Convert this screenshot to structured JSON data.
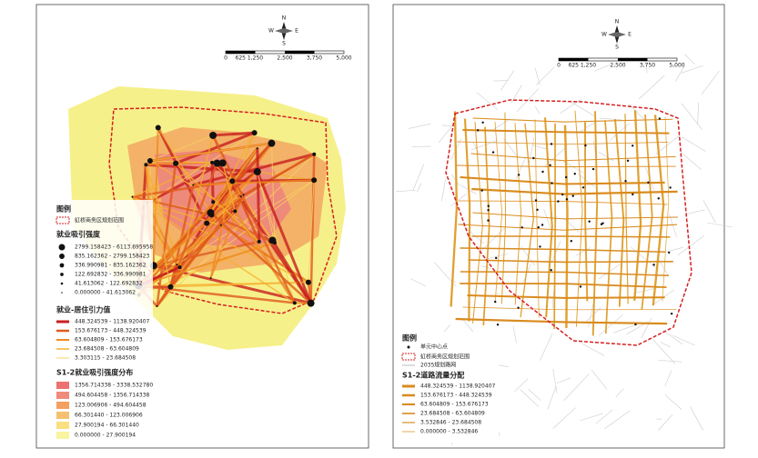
{
  "left_map": {
    "compass": [
      "N",
      "S",
      "W",
      "E"
    ],
    "scale_labels": [
      "0",
      "625",
      "1,250",
      "2,500",
      "3,750",
      "5,000"
    ],
    "legend": {
      "title": "图例",
      "boundary": "虹桥商务区规划范围",
      "attraction_title": "就业吸引强度",
      "attraction_classes": [
        "2799.158423 - 6113.695958",
        "835.162362 - 2799.158423",
        "336.990981 - 835.162362",
        "122.692832 - 336.990981",
        "41.613062 - 122.692832",
        "0.000000 - 41.613062"
      ],
      "gravity_title": "就业-居住引力值",
      "gravity_classes": [
        "448.324539 - 1138.920407",
        "153.676173 - 448.324539",
        "63.604809 - 153.676173",
        "23.684508 - 63.604809",
        "3.303115 - 23.684508"
      ],
      "distribution_title": "S1-2就业吸引强度分布",
      "distribution_classes": [
        "1356.714338 - 3338.532780",
        "494.604458 - 1356.714338",
        "123.006906 - 494.604458",
        "66.301440 - 123.006906",
        "27.900194 - 66.301440",
        "0.000000 - 27.900194"
      ]
    }
  },
  "right_map": {
    "compass": [
      "N",
      "S",
      "W",
      "E"
    ],
    "scale_labels": [
      "0",
      "625",
      "1,250",
      "2,500",
      "3,750",
      "5,000"
    ],
    "legend": {
      "title": "图例",
      "centroid": "单元中心点",
      "boundary": "虹桥商务区规划范围",
      "network": "2035规划路网",
      "flow_title": "S1-2道路流量分配",
      "flow_classes": [
        "448.324539 - 1138.920407",
        "153.676173 - 448.324539",
        "63.604809 - 153.676173",
        "23.684508 - 63.604809",
        "3.532846 - 23.684508",
        "0.000000 - 3.532846"
      ]
    }
  }
}
